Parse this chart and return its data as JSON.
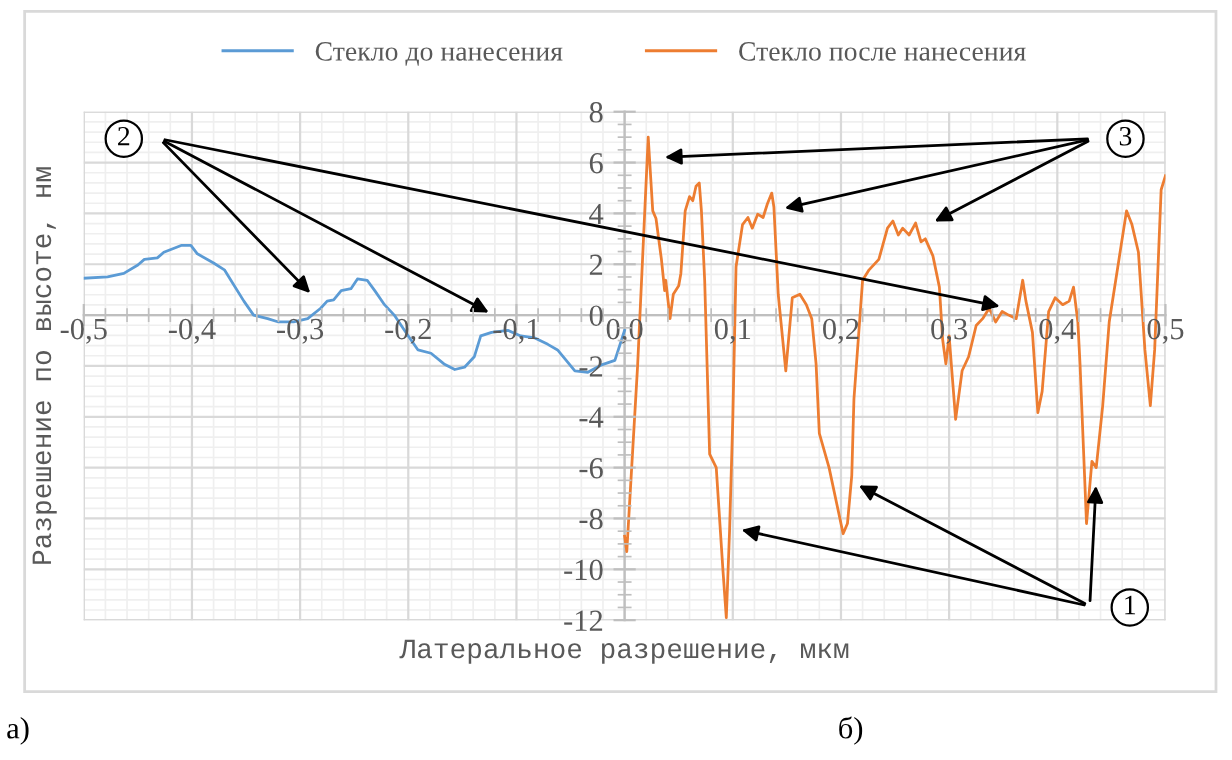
{
  "chart_data": {
    "type": "line",
    "xlabel": "Латеральное разрешение, мкм",
    "ylabel": "Разрешение по высоте, нм",
    "xlim": [
      -0.5,
      0.5
    ],
    "xticks": [
      {
        "value": -0.5,
        "label": "-0,5"
      },
      {
        "value": -0.4,
        "label": "-0,4"
      },
      {
        "value": -0.3,
        "label": "-0,3"
      },
      {
        "value": -0.2,
        "label": "-0,2"
      },
      {
        "value": -0.1,
        "label": "-0,1"
      },
      {
        "value": 0.0,
        "label": "0,0"
      },
      {
        "value": 0.1,
        "label": "0,1"
      },
      {
        "value": 0.2,
        "label": "0,2"
      },
      {
        "value": 0.3,
        "label": "0,3"
      },
      {
        "value": 0.4,
        "label": "0,4"
      },
      {
        "value": 0.5,
        "label": "0,5"
      }
    ],
    "ylim": [
      -12,
      8
    ],
    "yticks": [
      -12,
      -10,
      -8,
      -6,
      -4,
      -2,
      0,
      2,
      4,
      6,
      8
    ],
    "grid": true,
    "legend": "top",
    "series": [
      {
        "name": "Стекло до нанесения",
        "color": "#5b9bd5",
        "x": [
          -0.5,
          -0.478,
          -0.463,
          -0.45,
          -0.444,
          -0.432,
          -0.426,
          -0.41,
          -0.401,
          -0.395,
          -0.38,
          -0.37,
          -0.364,
          -0.352,
          -0.343,
          -0.33,
          -0.32,
          -0.306,
          -0.293,
          -0.281,
          -0.275,
          -0.269,
          -0.262,
          -0.253,
          -0.247,
          -0.238,
          -0.231,
          -0.222,
          -0.213,
          -0.2,
          -0.191,
          -0.179,
          -0.167,
          -0.157,
          -0.148,
          -0.139,
          -0.133,
          -0.123,
          -0.108,
          -0.096,
          -0.083,
          -0.071,
          -0.062,
          -0.046,
          -0.034,
          -0.022,
          -0.009,
          0.0
        ],
        "values": [
          1.45,
          1.5,
          1.64,
          1.97,
          2.19,
          2.25,
          2.47,
          2.74,
          2.74,
          2.41,
          2.05,
          1.78,
          1.37,
          0.55,
          0.0,
          -0.14,
          -0.27,
          -0.27,
          -0.14,
          0.27,
          0.55,
          0.6,
          0.96,
          1.04,
          1.42,
          1.37,
          0.96,
          0.41,
          0.0,
          -0.82,
          -1.37,
          -1.5,
          -1.92,
          -2.14,
          -2.05,
          -1.64,
          -0.82,
          -0.68,
          -0.6,
          -0.82,
          -0.9,
          -1.15,
          -1.37,
          -2.19,
          -2.25,
          -1.97,
          -1.78,
          -0.6
        ]
      },
      {
        "name": "Стекло после нанесения",
        "color": "#ed7d31",
        "x": [
          0.0,
          0.002,
          0.012,
          0.0218,
          0.026,
          0.029,
          0.034,
          0.037,
          0.038,
          0.042,
          0.045,
          0.05,
          0.052,
          0.056,
          0.06,
          0.063,
          0.066,
          0.069,
          0.071,
          0.074,
          0.0786,
          0.0847,
          0.091,
          0.094,
          0.097,
          0.1,
          0.103,
          0.109,
          0.114,
          0.118,
          0.123,
          0.128,
          0.132,
          0.136,
          0.138,
          0.142,
          0.149,
          0.155,
          0.162,
          0.168,
          0.173,
          0.177,
          0.18,
          0.189,
          0.202,
          0.206,
          0.21,
          0.212,
          0.22,
          0.226,
          0.235,
          0.243,
          0.248,
          0.253,
          0.257,
          0.263,
          0.269,
          0.274,
          0.278,
          0.285,
          0.291,
          0.294,
          0.297,
          0.3,
          0.303,
          0.306,
          0.312,
          0.318,
          0.325,
          0.331,
          0.337,
          0.343,
          0.349,
          0.355,
          0.362,
          0.368,
          0.371,
          0.377,
          0.382,
          0.386,
          0.392,
          0.398,
          0.405,
          0.411,
          0.415,
          0.419,
          0.421,
          0.427,
          0.432,
          0.436,
          0.442,
          0.448,
          0.457,
          0.464,
          0.469,
          0.475,
          0.481,
          0.486,
          0.49,
          0.496,
          0.5
        ],
        "values": [
          -8.7,
          -9.3,
          -2.0,
          7.0,
          4.1,
          3.8,
          2.2,
          0.96,
          1.37,
          -0.14,
          0.82,
          1.15,
          1.64,
          4.1,
          4.66,
          4.5,
          5.07,
          5.2,
          4.1,
          1.37,
          -5.47,
          -6.0,
          -10.1,
          -11.9,
          -8.5,
          -4.1,
          1.9,
          3.56,
          3.84,
          3.42,
          3.97,
          3.84,
          4.38,
          4.8,
          4.25,
          0.82,
          -2.19,
          0.68,
          0.82,
          0.41,
          -0.14,
          -1.92,
          -4.65,
          -6.0,
          -8.6,
          -8.2,
          -6.3,
          -3.3,
          1.37,
          1.78,
          2.19,
          3.42,
          3.7,
          3.15,
          3.42,
          3.15,
          3.62,
          2.88,
          3.0,
          2.33,
          1.1,
          -0.96,
          -1.92,
          -0.82,
          -2.47,
          -4.1,
          -2.19,
          -1.64,
          -0.41,
          -0.14,
          0.27,
          -0.27,
          0.14,
          0.0,
          -0.14,
          1.37,
          0.55,
          -0.68,
          -3.84,
          -3.0,
          0.14,
          0.68,
          0.41,
          0.55,
          1.1,
          -0.27,
          -1.92,
          -8.2,
          -5.75,
          -6.0,
          -3.55,
          -0.27,
          2.19,
          4.1,
          3.56,
          2.47,
          -1.37,
          -3.56,
          -1.37,
          4.93,
          5.48
        ]
      }
    ],
    "annotations": [
      {
        "text": "2",
        "x": 0.352,
        "y": 0.3
      },
      "3",
      {
        "text": "1",
        "x": 0.436,
        "y": -6.5
      },
      "а)",
      "б)"
    ]
  }
}
